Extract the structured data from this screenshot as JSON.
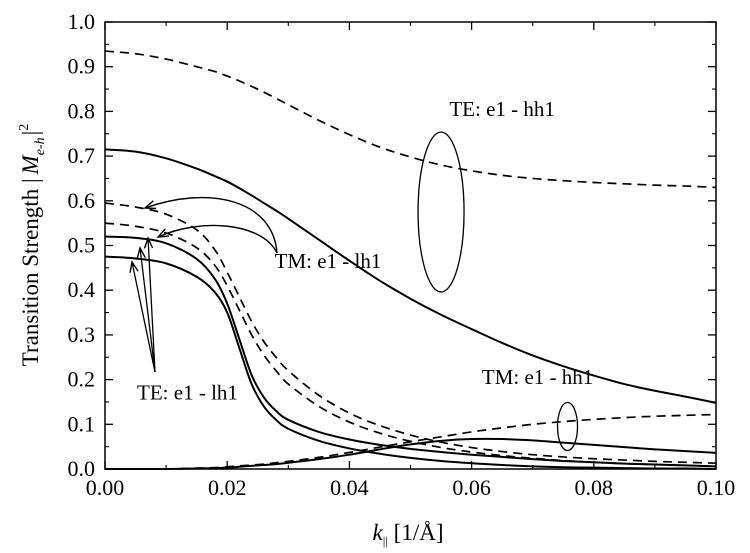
{
  "chart_data": {
    "type": "line",
    "title": "",
    "xlabel": {
      "main": "k",
      "sub": "||",
      "unit": " [1/Å]"
    },
    "ylabel": {
      "main": "Transition Strength |",
      "M": "M",
      "sub": "e-h",
      "bar": "|",
      "sup": "2"
    },
    "xlim": [
      0.0,
      0.1
    ],
    "ylim": [
      0.0,
      1.0
    ],
    "grid": false,
    "x_ticks": [
      "0.00",
      "0.02",
      "0.04",
      "0.06",
      "0.08",
      "0.10"
    ],
    "y_ticks": [
      "0.0",
      "0.1",
      "0.2",
      "0.3",
      "0.4",
      "0.5",
      "0.6",
      "0.7",
      "0.8",
      "0.9",
      "1.0"
    ],
    "x": [
      0.0,
      0.005,
      0.01,
      0.015,
      0.018,
      0.02,
      0.022,
      0.024,
      0.026,
      0.028,
      0.03,
      0.035,
      0.04,
      0.045,
      0.05,
      0.055,
      0.06,
      0.065,
      0.07,
      0.075,
      0.08,
      0.085,
      0.09,
      0.095,
      0.1
    ],
    "series": [
      {
        "name": "TE: e1 - hh1 (dashed)",
        "style": "dashed",
        "values": [
          0.935,
          0.929,
          0.917,
          0.9,
          0.889,
          0.879,
          0.868,
          0.856,
          0.843,
          0.829,
          0.815,
          0.78,
          0.748,
          0.72,
          0.698,
          0.68,
          0.667,
          0.657,
          0.65,
          0.645,
          0.641,
          0.638,
          0.635,
          0.633,
          0.63
        ]
      },
      {
        "name": "TE: e1 - hh1 (solid)",
        "style": "solid",
        "values": [
          0.715,
          0.71,
          0.695,
          0.672,
          0.655,
          0.643,
          0.628,
          0.612,
          0.595,
          0.578,
          0.56,
          0.513,
          0.466,
          0.421,
          0.381,
          0.345,
          0.313,
          0.282,
          0.254,
          0.23,
          0.209,
          0.19,
          0.175,
          0.162,
          0.148
        ]
      },
      {
        "name": "TM: e1 - lh1 (dashed)",
        "style": "dashed",
        "values": [
          0.595,
          0.586,
          0.57,
          0.535,
          0.49,
          0.44,
          0.385,
          0.33,
          0.285,
          0.25,
          0.22,
          0.165,
          0.125,
          0.097,
          0.076,
          0.06,
          0.048,
          0.039,
          0.032,
          0.027,
          0.023,
          0.02,
          0.017,
          0.015,
          0.013
        ]
      },
      {
        "name": "TE: e1 - lh1 (dashed)",
        "style": "dashed",
        "values": [
          0.55,
          0.543,
          0.528,
          0.495,
          0.455,
          0.41,
          0.355,
          0.3,
          0.255,
          0.22,
          0.19,
          0.14,
          0.105,
          0.08,
          0.062,
          0.048,
          0.038,
          0.03,
          0.024,
          0.019,
          0.015,
          0.012,
          0.01,
          0.008,
          0.006
        ]
      },
      {
        "name": "TM: e1 - lh1 (solid)",
        "style": "solid",
        "values": [
          0.52,
          0.517,
          0.505,
          0.47,
          0.425,
          0.37,
          0.29,
          0.21,
          0.16,
          0.13,
          0.11,
          0.083,
          0.066,
          0.054,
          0.045,
          0.038,
          0.032,
          0.027,
          0.022,
          0.018,
          0.015,
          0.012,
          0.01,
          0.008,
          0.006
        ]
      },
      {
        "name": "TE: e1 - lh1 (solid)",
        "style": "solid",
        "values": [
          0.475,
          0.471,
          0.46,
          0.43,
          0.395,
          0.35,
          0.27,
          0.19,
          0.14,
          0.11,
          0.09,
          0.063,
          0.046,
          0.034,
          0.025,
          0.018,
          0.013,
          0.009,
          0.006,
          0.004,
          0.003,
          0.002,
          0.001,
          0.001,
          0.0
        ]
      },
      {
        "name": "TM: e1 - hh1 (dashed)",
        "style": "dashed",
        "values": [
          0.0,
          0.0,
          0.0,
          0.002,
          0.003,
          0.005,
          0.007,
          0.009,
          0.011,
          0.014,
          0.017,
          0.026,
          0.037,
          0.049,
          0.061,
          0.072,
          0.083,
          0.092,
          0.1,
          0.106,
          0.111,
          0.115,
          0.118,
          0.12,
          0.122
        ]
      },
      {
        "name": "TM: e1 - hh1 (solid)",
        "style": "solid",
        "values": [
          0.0,
          0.0,
          0.0,
          0.001,
          0.002,
          0.003,
          0.005,
          0.007,
          0.009,
          0.011,
          0.014,
          0.022,
          0.032,
          0.044,
          0.055,
          0.063,
          0.067,
          0.067,
          0.064,
          0.059,
          0.054,
          0.049,
          0.044,
          0.04,
          0.036
        ]
      }
    ],
    "annotations": [
      {
        "text": "TE: e1 - hh1",
        "x": 0.065,
        "y": 0.79
      },
      {
        "text": "TM: e1 - lh1",
        "x": 0.0365,
        "y": 0.45
      },
      {
        "text": "TE: e1 - lh1",
        "x": 0.0135,
        "y": 0.155
      },
      {
        "text": "TM: e1 - hh1",
        "x": 0.0708,
        "y": 0.19
      }
    ]
  }
}
